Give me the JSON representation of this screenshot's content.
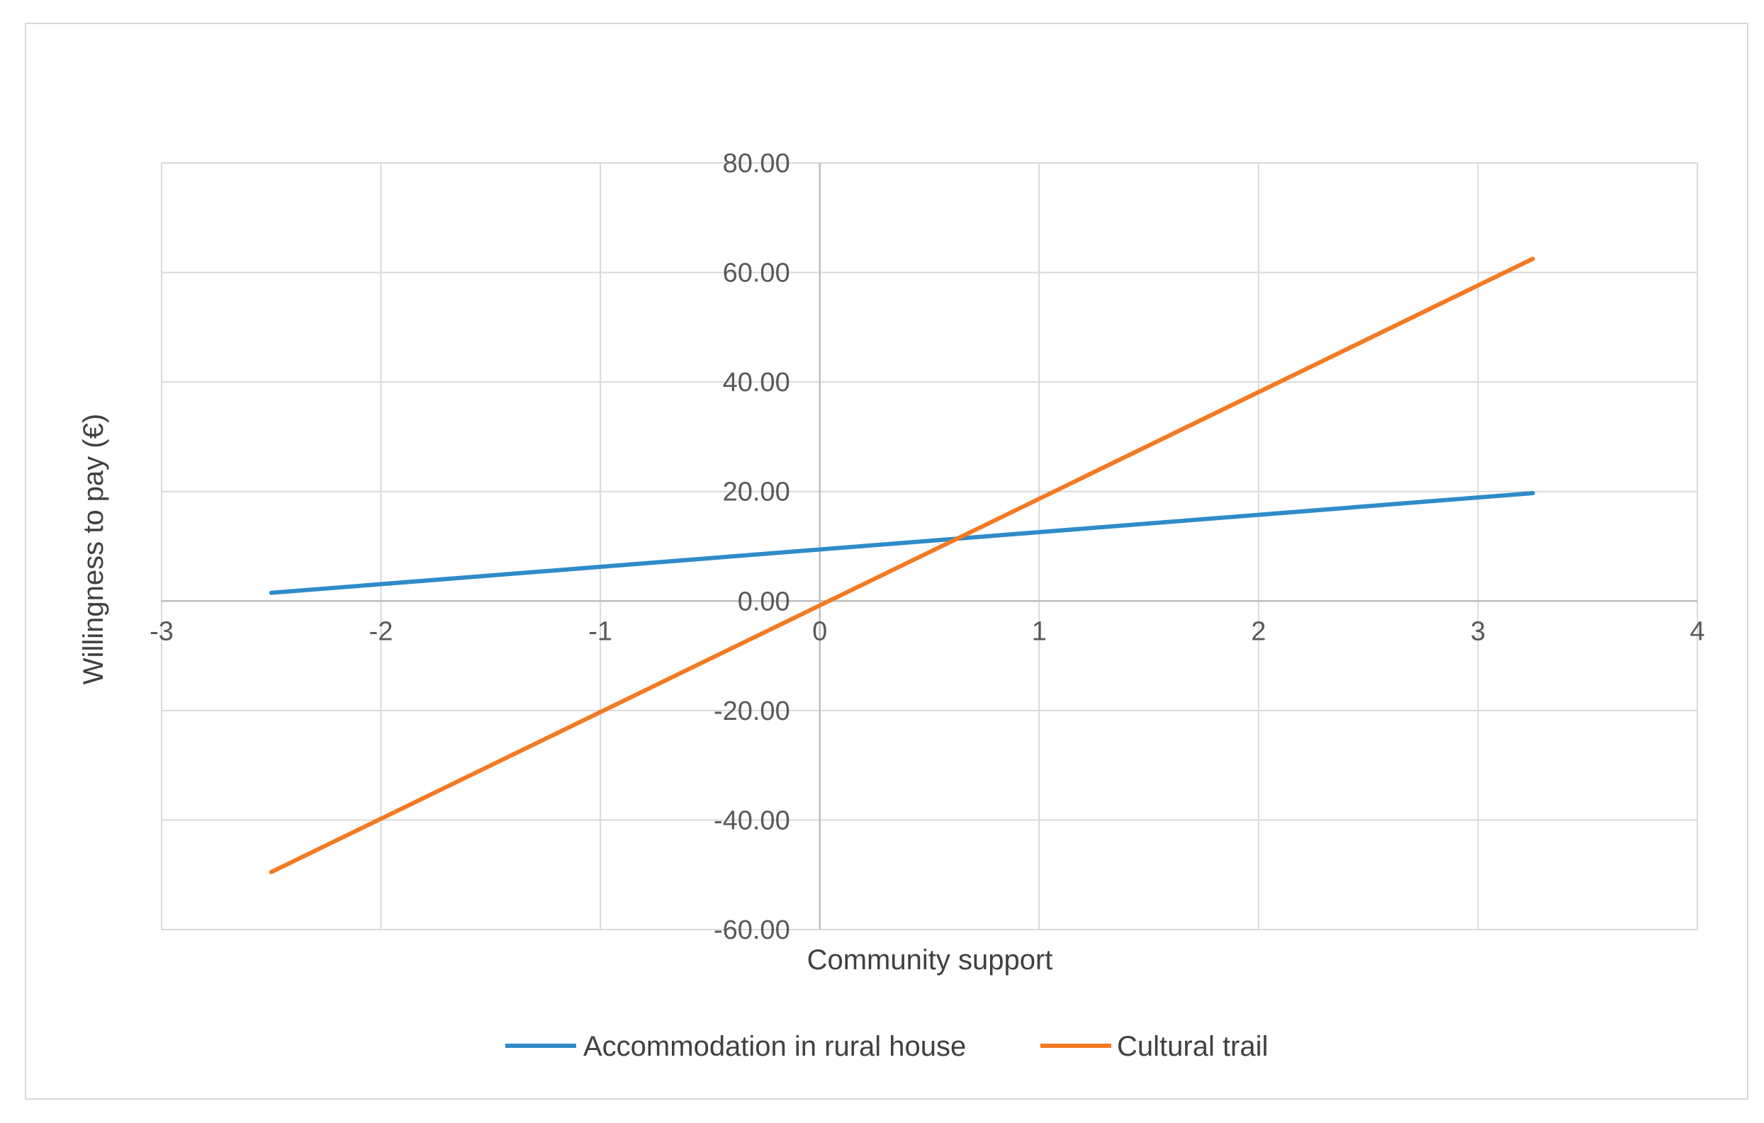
{
  "chart_data": {
    "type": "line",
    "title": "",
    "xlabel": "Community support",
    "ylabel": "Willingness to pay (€)",
    "xlim": [
      -3,
      4
    ],
    "ylim": [
      -60,
      80
    ],
    "x_ticks": [
      -3,
      -2,
      -1,
      0,
      1,
      2,
      3,
      4
    ],
    "x_tick_labels": [
      "-3",
      "-2",
      "-1",
      "0",
      "1",
      "2",
      "3",
      "4"
    ],
    "y_ticks": [
      80,
      60,
      40,
      20,
      0,
      -20,
      -40,
      -60
    ],
    "y_tick_labels": [
      "80.00",
      "60.00",
      "40.00",
      "20.00",
      "0.00",
      "-20.00",
      "-40.00",
      "-60.00"
    ],
    "grid": true,
    "legend_position": "bottom",
    "series": [
      {
        "name": "Accommodation in rural house",
        "color": "#2E8BC9",
        "x": [
          -2.5,
          3.25
        ],
        "y": [
          1.5,
          19.7
        ]
      },
      {
        "name": "Cultural trail",
        "color": "#F47A21",
        "x": [
          -2.5,
          3.25
        ],
        "y": [
          -49.5,
          62.5
        ]
      }
    ]
  }
}
